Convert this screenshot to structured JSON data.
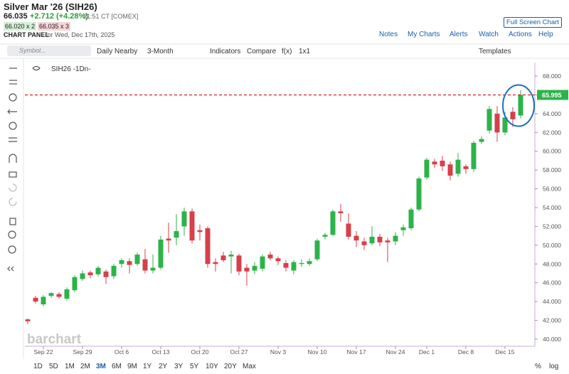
{
  "header": {
    "title": "Silver Mar '26 (SIH26)",
    "price": "66.035",
    "change": "+2.712 (+4.28%)",
    "time": "21:51 CT [COMEX]",
    "bid": "66.020 x 2",
    "ask": "66.035 x 3",
    "panel": "CHART PANEL",
    "panel_date": "for Wed, Dec 17th, 2025",
    "full_screen": "Full Screen Chart",
    "links": [
      "Notes",
      "My Charts",
      "Alerts",
      "Watch",
      "Actions",
      "Help"
    ]
  },
  "toolbar": {
    "symbol_placeholder": "Symbol...",
    "items": [
      "Daily Nearby",
      "3-Month",
      "Indicators",
      "Compare",
      "f(x)",
      "1x1"
    ],
    "templates": "Templates"
  },
  "footer": {
    "ranges": [
      "1D",
      "5D",
      "1M",
      "2M",
      "3M",
      "6M",
      "9M",
      "1Y",
      "2Y",
      "3Y",
      "5Y",
      "10Y",
      "20Y",
      "Max"
    ],
    "percent": "%",
    "log": "log"
  },
  "watermark": "barchart",
  "chart_data": {
    "type": "candlestick",
    "series_name": "SIH26 -1Dn-",
    "up_color": "#2db34a",
    "down_color": "#d6404a",
    "categories": [
      null,
      null,
      "Sep 22",
      null,
      null,
      null,
      null,
      "Sep 29",
      null,
      null,
      null,
      null,
      "Oct 6",
      null,
      null,
      null,
      null,
      "Oct 13",
      null,
      null,
      null,
      null,
      "Oct 20",
      null,
      null,
      null,
      null,
      "Oct 27",
      null,
      null,
      null,
      null,
      "Nov 3",
      null,
      null,
      null,
      null,
      "Nov 10",
      null,
      null,
      null,
      null,
      "Nov 17",
      null,
      null,
      null,
      null,
      "Nov 24",
      null,
      null,
      null,
      "Dec 1",
      null,
      null,
      null,
      null,
      "Dec 8",
      null,
      null,
      null,
      null,
      "Dec 15",
      null,
      null
    ],
    "open": [
      42.1,
      44.4,
      43.7,
      44.6,
      44.8,
      44.3,
      45.2,
      46.4,
      47.1,
      46.9,
      47.2,
      46.7,
      48.0,
      48.3,
      48.0,
      48.5,
      47.3,
      47.6,
      50.7,
      50.8,
      52.0,
      53.6,
      51.6,
      51.8,
      48.2,
      48.9,
      48.8,
      48.9,
      47.6,
      47.3,
      47.5,
      49.0,
      48.6,
      48.1,
      47.3,
      48.0,
      48.0,
      48.5,
      50.9,
      51.1,
      53.6,
      52.3,
      51.0,
      50.4,
      50.2,
      50.9,
      50.5,
      50.4,
      51.6,
      51.8,
      53.8,
      57.2,
      58.9,
      59.0,
      58.6,
      57.6,
      58.4,
      58.1,
      61.0,
      62.2,
      64.0,
      62.0,
      64.2,
      63.8
    ],
    "high": [
      42.2,
      44.6,
      44.7,
      45.0,
      45.0,
      45.5,
      46.8,
      47.3,
      47.3,
      47.8,
      47.4,
      48.0,
      48.6,
      48.6,
      49.2,
      49.6,
      49.0,
      51.0,
      52.4,
      53.3,
      54.0,
      53.9,
      52.2,
      52.0,
      48.6,
      49.3,
      49.4,
      49.1,
      48.0,
      48.2,
      49.0,
      49.3,
      48.8,
      48.4,
      48.4,
      48.5,
      48.6,
      50.7,
      51.3,
      53.8,
      54.4,
      53.4,
      51.5,
      50.8,
      52.0,
      51.2,
      50.8,
      51.4,
      52.2,
      54.0,
      57.3,
      59.3,
      59.2,
      59.5,
      58.9,
      59.8,
      58.6,
      61.1,
      61.6,
      64.8,
      64.8,
      64.2,
      64.7,
      66.5
    ],
    "low": [
      41.6,
      43.8,
      43.5,
      44.4,
      44.3,
      44.1,
      45.0,
      46.2,
      46.5,
      46.7,
      45.9,
      46.4,
      47.6,
      47.0,
      47.8,
      47.0,
      47.0,
      47.4,
      49.2,
      50.0,
      51.0,
      50.2,
      50.5,
      47.6,
      47.2,
      48.2,
      47.0,
      46.8,
      45.7,
      46.9,
      47.2,
      48.4,
      47.9,
      47.2,
      46.9,
      47.7,
      47.8,
      48.3,
      50.6,
      51.0,
      52.5,
      50.6,
      49.8,
      49.5,
      50.0,
      49.9,
      48.2,
      50.0,
      51.0,
      51.6,
      53.6,
      57.0,
      58.2,
      57.9,
      56.9,
      57.3,
      57.6,
      57.8,
      60.8,
      61.9,
      61.0,
      61.7,
      62.6,
      63.5
    ],
    "close": [
      41.9,
      44.0,
      44.5,
      44.9,
      44.5,
      45.3,
      46.6,
      47.0,
      46.8,
      47.6,
      46.6,
      47.8,
      48.4,
      47.9,
      49.0,
      47.3,
      47.6,
      50.6,
      50.5,
      51.5,
      53.6,
      50.5,
      51.4,
      48.0,
      48.0,
      48.4,
      49.0,
      47.2,
      47.2,
      47.8,
      48.8,
      48.6,
      48.3,
      47.6,
      48.2,
      48.1,
      48.3,
      50.5,
      51.1,
      53.6,
      53.4,
      50.9,
      50.5,
      50.0,
      50.9,
      50.3,
      50.3,
      51.0,
      51.9,
      53.8,
      57.1,
      59.1,
      58.6,
      58.4,
      57.4,
      59.1,
      58.1,
      60.9,
      61.3,
      64.5,
      62.0,
      63.6,
      63.4,
      65.995
    ],
    "ylim": [
      39.24,
      69.44
    ],
    "yticks": [
      {
        "value": 40,
        "label": "40.000"
      },
      {
        "value": 42,
        "label": "42.000"
      },
      {
        "value": 44,
        "label": "44.000"
      },
      {
        "value": 46,
        "label": "46.000"
      },
      {
        "value": 48,
        "label": "48.000"
      },
      {
        "value": 50,
        "label": "50.000"
      },
      {
        "value": 52,
        "label": "52.000"
      },
      {
        "value": 54,
        "label": "54.000"
      },
      {
        "value": 56,
        "label": "56.000"
      },
      {
        "value": 58,
        "label": "58.000"
      },
      {
        "value": 60,
        "label": "60.000"
      },
      {
        "value": 62,
        "label": "62.000"
      },
      {
        "value": 64,
        "label": "64.000"
      },
      {
        "value": 66,
        "label": "66.000"
      },
      {
        "value": 68,
        "label": "68.000"
      }
    ],
    "last_line_color": "#d6202a"
  }
}
